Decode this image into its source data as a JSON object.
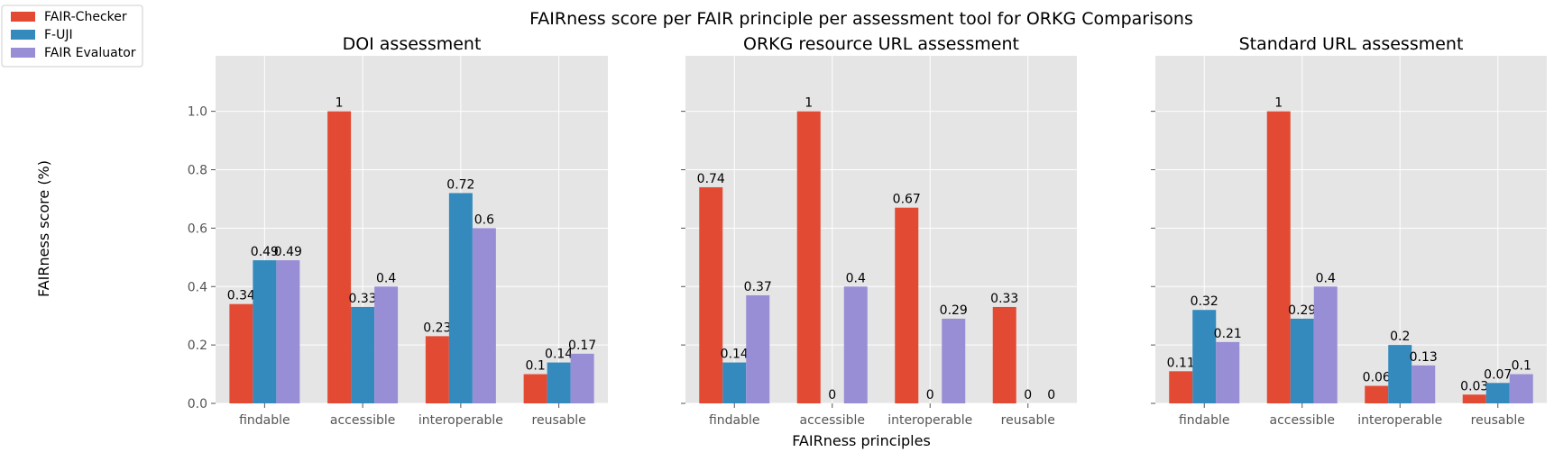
{
  "figure": {
    "suptitle": "FAIRness score per FAIR principle per assessment tool for ORKG Comparisons",
    "shared_xlabel": "FAIRness principles",
    "shared_ylabel": "FAIRness score (%)"
  },
  "legend": {
    "placement": "upper-left",
    "items": [
      {
        "label": "FAIR-Checker",
        "color": "#E24A33"
      },
      {
        "label": "F-UJI",
        "color": "#348ABD"
      },
      {
        "label": "FAIR Evaluator",
        "color": "#988ED5"
      }
    ]
  },
  "colors": {
    "axes_bg": "#E5E5E5",
    "grid": "#FFFFFF",
    "tick_text": "#555555",
    "text": "#000000"
  },
  "chart_data": [
    {
      "type": "bar",
      "title": "DOI assessment",
      "categories": [
        "findable",
        "accessible",
        "interoperable",
        "reusable"
      ],
      "ylim": [
        0,
        1.19
      ],
      "yticks": [
        "0.0",
        "0.2",
        "0.4",
        "0.6",
        "0.8",
        "1.0"
      ],
      "grid": true,
      "series": [
        {
          "name": "FAIR-Checker",
          "values": [
            0.34,
            1,
            0.23,
            0.1
          ],
          "labels": [
            "0.34",
            "1",
            "0.23",
            "0.1"
          ]
        },
        {
          "name": "F-UJI",
          "values": [
            0.49,
            0.33,
            0.72,
            0.14
          ],
          "labels": [
            "0.49",
            "0.33",
            "0.72",
            "0.14"
          ]
        },
        {
          "name": "FAIR Evaluator",
          "values": [
            0.49,
            0.4,
            0.6,
            0.17
          ],
          "labels": [
            "0.49",
            "0.4",
            "0.6",
            "0.17"
          ]
        }
      ]
    },
    {
      "type": "bar",
      "title": "ORKG resource URL assessment",
      "categories": [
        "findable",
        "accessible",
        "interoperable",
        "reusable"
      ],
      "ylim": [
        0,
        1.19
      ],
      "yticks": [
        "0.0",
        "0.2",
        "0.4",
        "0.6",
        "0.8",
        "1.0"
      ],
      "grid": true,
      "series": [
        {
          "name": "FAIR-Checker",
          "values": [
            0.74,
            1,
            0.67,
            0.33
          ],
          "labels": [
            "0.74",
            "1",
            "0.67",
            "0.33"
          ]
        },
        {
          "name": "F-UJI",
          "values": [
            0.14,
            0,
            0,
            0
          ],
          "labels": [
            "0.14",
            "0",
            "0",
            "0"
          ]
        },
        {
          "name": "FAIR Evaluator",
          "values": [
            0.37,
            0.4,
            0.29,
            0
          ],
          "labels": [
            "0.37",
            "0.4",
            "0.29",
            "0"
          ]
        }
      ]
    },
    {
      "type": "bar",
      "title": "Standard URL assessment",
      "categories": [
        "findable",
        "accessible",
        "interoperable",
        "reusable"
      ],
      "ylim": [
        0,
        1.19
      ],
      "yticks": [
        "0.0",
        "0.2",
        "0.4",
        "0.6",
        "0.8",
        "1.0"
      ],
      "grid": true,
      "series": [
        {
          "name": "FAIR-Checker",
          "values": [
            0.11,
            1,
            0.06,
            0.03
          ],
          "labels": [
            "0.11",
            "1",
            "0.06",
            "0.03"
          ]
        },
        {
          "name": "F-UJI",
          "values": [
            0.32,
            0.29,
            0.2,
            0.07
          ],
          "labels": [
            "0.32",
            "0.29",
            "0.2",
            "0.07"
          ]
        },
        {
          "name": "FAIR Evaluator",
          "values": [
            0.21,
            0.4,
            0.13,
            0.1
          ],
          "labels": [
            "0.21",
            "0.4",
            "0.13",
            "0.1"
          ]
        }
      ]
    }
  ]
}
